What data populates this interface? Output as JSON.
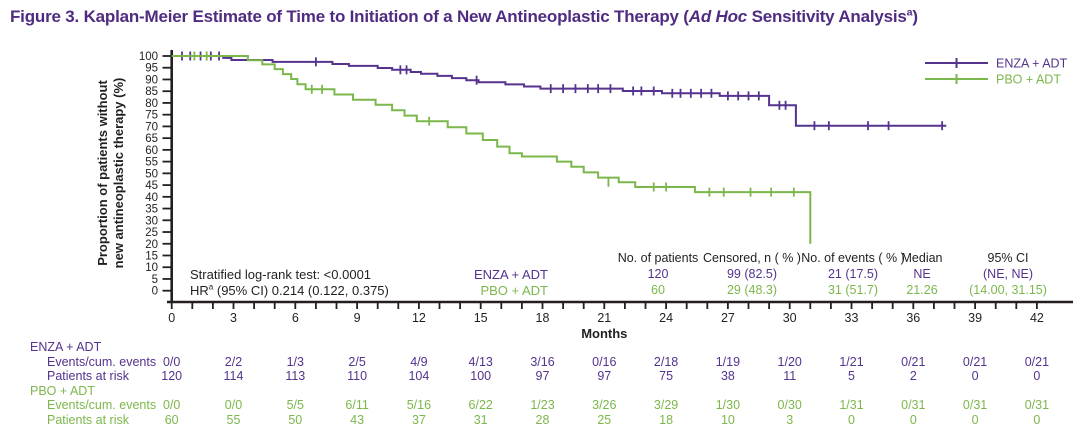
{
  "title": {
    "prefix": "Figure 3. Kaplan-Meier Estimate of Time to Initiation of a New Antineoplastic Therapy (",
    "italic": "Ad Hoc",
    "suffix": " Sensitivity Analysis",
    "sup": "a",
    "close": ")"
  },
  "colors": {
    "enza": "#55338E",
    "pbo": "#7CB74B",
    "axis": "#231F20",
    "title": "#4F2C82"
  },
  "chart_data": {
    "type": "line",
    "subtype": "kaplan-meier",
    "x_axis": {
      "label": "Months",
      "min": 0,
      "max": 42,
      "major_step": 3,
      "minor_step": 1
    },
    "y_axis": {
      "label_line1": "Proportion of patients without",
      "label_line2": "new antineoplastic therapy (%)",
      "min": 0,
      "max": 100,
      "tick_step": 5
    },
    "legend": [
      {
        "key": "enza",
        "label": "ENZA + ADT"
      },
      {
        "key": "pbo",
        "label": "PBO + ADT"
      }
    ],
    "series": [
      {
        "key": "enza",
        "name": "ENZA + ADT",
        "start": [
          0,
          100
        ],
        "end_month": 37.6,
        "steps": [
          [
            2.5,
            99.2
          ],
          [
            2.9,
            98.3
          ],
          [
            4.9,
            97.5
          ],
          [
            7.8,
            96.6
          ],
          [
            8.6,
            95.8
          ],
          [
            10.0,
            94.9
          ],
          [
            10.7,
            94.1
          ],
          [
            11.6,
            93.2
          ],
          [
            12.1,
            92.4
          ],
          [
            12.9,
            91.5
          ],
          [
            13.6,
            90.6
          ],
          [
            14.3,
            89.7
          ],
          [
            14.9,
            88.8
          ],
          [
            16.2,
            87.9
          ],
          [
            17.1,
            87.0
          ],
          [
            17.9,
            86.1
          ],
          [
            21.9,
            85.1
          ],
          [
            23.8,
            84.1
          ],
          [
            26.6,
            83.0
          ],
          [
            29.0,
            79.0
          ],
          [
            30.3,
            70.3
          ]
        ],
        "censors": [
          [
            0.5,
            100
          ],
          [
            0.9,
            100
          ],
          [
            1.4,
            100
          ],
          [
            1.9,
            100
          ],
          [
            2.3,
            100
          ],
          [
            7.0,
            97.5
          ],
          [
            11.1,
            94.1
          ],
          [
            11.4,
            94.1
          ],
          [
            14.8,
            89.7
          ],
          [
            18.4,
            86.1
          ],
          [
            19.0,
            86.1
          ],
          [
            19.6,
            86.1
          ],
          [
            20.2,
            86.1
          ],
          [
            20.7,
            86.1
          ],
          [
            21.3,
            86.1
          ],
          [
            22.4,
            85.1
          ],
          [
            22.8,
            85.1
          ],
          [
            23.4,
            85.1
          ],
          [
            24.3,
            84.1
          ],
          [
            24.7,
            84.1
          ],
          [
            25.2,
            84.1
          ],
          [
            25.7,
            84.1
          ],
          [
            26.2,
            84.1
          ],
          [
            27.0,
            83.0
          ],
          [
            27.5,
            83.0
          ],
          [
            28.0,
            83.0
          ],
          [
            28.5,
            83.0
          ],
          [
            29.5,
            79.0
          ],
          [
            29.8,
            79.0
          ],
          [
            31.2,
            70.3
          ],
          [
            31.9,
            70.3
          ],
          [
            33.8,
            70.3
          ],
          [
            34.8,
            70.3
          ],
          [
            37.4,
            70.3
          ]
        ]
      },
      {
        "key": "pbo",
        "name": "PBO + ADT",
        "start": [
          0,
          100
        ],
        "end_month": 31.0,
        "steps": [
          [
            3.7,
            98.2
          ],
          [
            4.4,
            96.4
          ],
          [
            5.0,
            94.4
          ],
          [
            5.4,
            92.3
          ],
          [
            5.8,
            90.2
          ],
          [
            6.1,
            88.0
          ],
          [
            6.5,
            85.8
          ],
          [
            7.9,
            83.6
          ],
          [
            8.8,
            81.4
          ],
          [
            9.9,
            79.2
          ],
          [
            10.7,
            76.9
          ],
          [
            11.3,
            74.6
          ],
          [
            11.9,
            72.2
          ],
          [
            13.4,
            69.6
          ],
          [
            14.3,
            67.0
          ],
          [
            15.1,
            64.2
          ],
          [
            15.8,
            61.4
          ],
          [
            16.4,
            58.6
          ],
          [
            17.0,
            57.2
          ],
          [
            18.7,
            55.0
          ],
          [
            19.4,
            52.8
          ],
          [
            20.0,
            50.4
          ],
          [
            20.7,
            48.2
          ],
          [
            21.7,
            46.2
          ],
          [
            22.5,
            44.2
          ],
          [
            25.4,
            42.0
          ],
          [
            31.0,
            20.0
          ]
        ],
        "censors": [
          [
            1.1,
            100
          ],
          [
            1.7,
            100
          ],
          [
            6.8,
            85.8
          ],
          [
            7.3,
            85.8
          ],
          [
            12.5,
            72.2
          ],
          [
            21.2,
            46.2
          ],
          [
            23.4,
            44.2
          ],
          [
            24.0,
            44.2
          ],
          [
            26.1,
            42.0
          ],
          [
            26.8,
            42.0
          ],
          [
            28.1,
            42.0
          ],
          [
            29.1,
            42.0
          ],
          [
            30.2,
            42.0
          ]
        ]
      }
    ],
    "stats": {
      "line1": "Stratified log-rank test: <0.0001",
      "line2_prefix": "HR",
      "line2_sup": "a",
      "line2_rest": " (95% CI) 0.214 (0.122, 0.375)"
    },
    "summary_table": {
      "row_labels": [
        {
          "key": "enza",
          "label": "ENZA + ADT"
        },
        {
          "key": "pbo",
          "label": "PBO + ADT"
        }
      ],
      "columns": [
        {
          "header": "No. of patients",
          "enza": "120",
          "pbo": "60"
        },
        {
          "header": "Censored, n ( % )",
          "enza": "99 (82.5)",
          "pbo": "29 (48.3)"
        },
        {
          "header": "No. of events ( % )",
          "enza": "21 (17.5)",
          "pbo": "31 (51.7)"
        },
        {
          "header": "Median",
          "enza": "NE",
          "pbo": "21.26"
        },
        {
          "header": "95% CI",
          "enza": "(NE, NE)",
          "pbo": "(14.00, 31.15)"
        }
      ]
    },
    "risk_table": {
      "months": [
        0,
        3,
        6,
        9,
        12,
        15,
        18,
        21,
        24,
        27,
        30,
        33,
        36,
        39,
        42
      ],
      "groups": [
        {
          "key": "enza",
          "label": "ENZA + ADT",
          "rows": [
            {
              "label": "Events/cum. events",
              "values": [
                "0/0",
                "2/2",
                "1/3",
                "2/5",
                "4/9",
                "4/13",
                "3/16",
                "0/16",
                "2/18",
                "1/19",
                "1/20",
                "1/21",
                "0/21",
                "0/21",
                "0/21"
              ]
            },
            {
              "label": "Patients at risk",
              "values": [
                "120",
                "114",
                "113",
                "110",
                "104",
                "100",
                "97",
                "97",
                "75",
                "38",
                "11",
                "5",
                "2",
                "0",
                "0"
              ]
            }
          ]
        },
        {
          "key": "pbo",
          "label": "PBO + ADT",
          "rows": [
            {
              "label": "Events/cum. events",
              "values": [
                "0/0",
                "0/0",
                "5/5",
                "6/11",
                "5/16",
                "6/22",
                "1/23",
                "3/26",
                "3/29",
                "1/30",
                "0/30",
                "1/31",
                "0/31",
                "0/31",
                "0/31"
              ]
            },
            {
              "label": "Patients at risk",
              "values": [
                "60",
                "55",
                "50",
                "43",
                "37",
                "31",
                "28",
                "25",
                "18",
                "10",
                "3",
                "0",
                "0",
                "0",
                "0"
              ]
            }
          ]
        }
      ]
    }
  }
}
